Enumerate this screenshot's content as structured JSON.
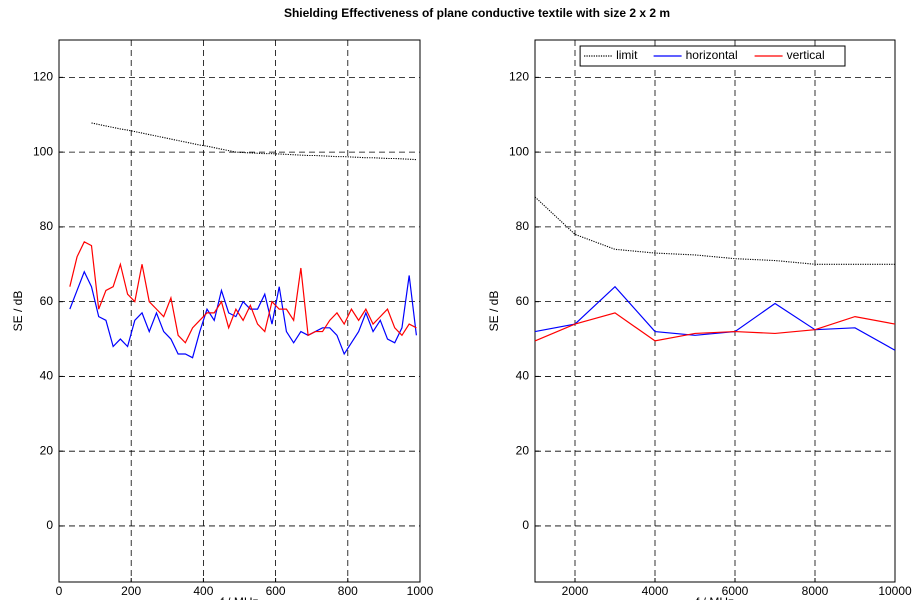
{
  "chart_data": [
    {
      "type": "line",
      "title": "Shielding Effectiveness of plane conductive textile with size 2 x 2 m",
      "xlabel": "f / MHz",
      "ylabel": "SE / dB",
      "x": [
        30,
        50,
        70,
        90,
        110,
        130,
        150,
        170,
        190,
        210,
        230,
        250,
        270,
        290,
        310,
        330,
        350,
        370,
        390,
        410,
        430,
        450,
        470,
        490,
        510,
        530,
        550,
        570,
        590,
        610,
        630,
        650,
        670,
        690,
        710,
        730,
        750,
        770,
        790,
        810,
        830,
        850,
        870,
        890,
        910,
        930,
        950,
        970,
        990
      ],
      "series": [
        {
          "name": "limit",
          "color": "#000000",
          "style": "dotted",
          "values": [
            null,
            null,
            null,
            107.8,
            107.4,
            107.0,
            106.6,
            106.2,
            105.9,
            105.5,
            105.1,
            104.7,
            104.3,
            103.9,
            103.5,
            103.1,
            102.7,
            102.3,
            101.9,
            101.6,
            101.2,
            100.8,
            100.4,
            100.0,
            99.9,
            99.8,
            99.7,
            99.6,
            99.6,
            99.5,
            99.4,
            99.3,
            99.2,
            99.1,
            99.1,
            99.0,
            98.9,
            98.8,
            98.8,
            98.7,
            98.6,
            98.5,
            98.5,
            98.4,
            98.3,
            98.3,
            98.2,
            98.1,
            98.0
          ]
        },
        {
          "name": "horizontal",
          "color": "#0000ff",
          "style": "solid",
          "values": [
            58,
            63,
            68,
            64,
            56,
            55,
            48,
            50,
            48,
            55,
            57,
            52,
            57,
            52,
            50,
            46,
            46,
            45,
            52,
            58,
            55,
            63,
            57,
            56,
            60,
            58,
            58,
            62,
            54,
            64,
            52,
            49,
            52,
            51,
            52,
            53,
            53,
            51,
            46,
            49,
            52,
            57,
            52,
            55,
            50,
            49,
            53,
            67,
            51
          ]
        },
        {
          "name": "vertical",
          "color": "#ff0000",
          "style": "solid",
          "values": [
            64,
            72,
            76,
            75,
            58,
            63,
            64,
            70,
            62,
            60,
            70,
            60,
            58,
            56,
            61,
            51,
            49,
            53,
            55,
            57,
            57,
            60,
            53,
            58,
            55,
            59,
            54,
            52,
            60,
            58,
            58,
            55,
            69,
            51,
            52,
            52,
            55,
            57,
            54,
            58,
            55,
            58,
            54,
            56,
            58,
            53,
            51,
            54,
            53
          ]
        }
      ],
      "xlim": [
        0,
        1000
      ],
      "xticks": [
        0,
        200,
        400,
        600,
        800,
        1000
      ],
      "ylim": [
        -15,
        130
      ],
      "yticks": [
        0,
        20,
        40,
        60,
        80,
        100,
        120
      ],
      "grid": true
    },
    {
      "type": "line",
      "xlabel": "f / MHz",
      "ylabel": "SE / dB",
      "x": [
        1000,
        2000,
        3000,
        4000,
        5000,
        6000,
        7000,
        8000,
        9000,
        10000
      ],
      "series": [
        {
          "name": "limit",
          "color": "#000000",
          "style": "dotted",
          "values": [
            88,
            78,
            74,
            73,
            72.5,
            71.5,
            71,
            70,
            70,
            70
          ]
        },
        {
          "name": "horizontal",
          "color": "#0000ff",
          "style": "solid",
          "values": [
            52,
            54,
            64,
            52,
            51,
            52,
            59.5,
            52.5,
            53,
            47
          ]
        },
        {
          "name": "vertical",
          "color": "#ff0000",
          "style": "solid",
          "values": [
            49.5,
            54,
            57,
            49.5,
            51.5,
            52,
            51.5,
            52.5,
            56,
            54
          ]
        }
      ],
      "xlim": [
        1000,
        10000
      ],
      "xticks": [
        2000,
        4000,
        6000,
        8000,
        10000
      ],
      "ylim": [
        -15,
        130
      ],
      "yticks": [
        0,
        20,
        40,
        60,
        80,
        100,
        120
      ],
      "grid": true,
      "legend": "upper right"
    }
  ]
}
